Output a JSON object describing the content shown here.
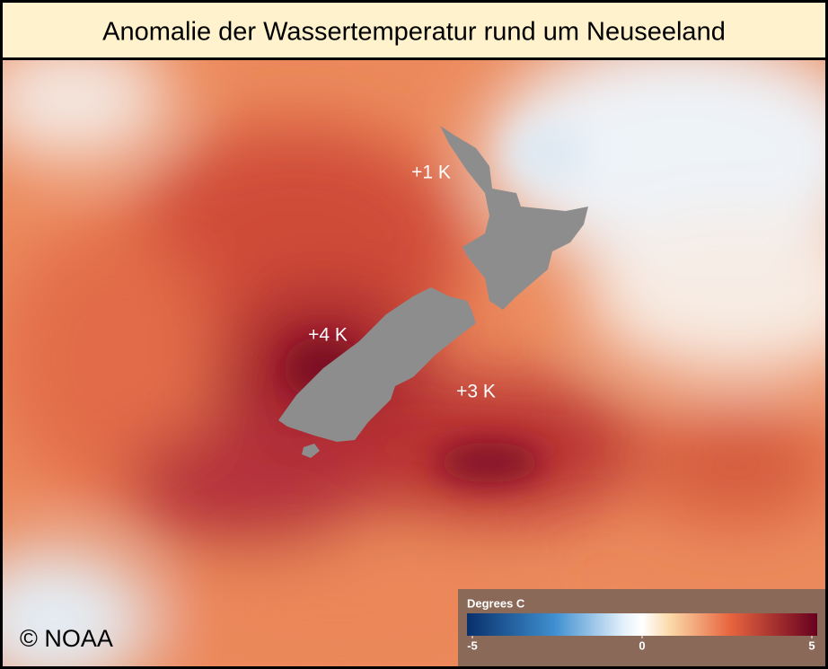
{
  "title": "Anomalie der Wassertemperatur rund um Neuseeland",
  "annotations": [
    {
      "text": "+1 K"
    },
    {
      "text": "+4 K"
    },
    {
      "text": "+3 K"
    }
  ],
  "credit": "© NOAA",
  "legend": {
    "title": "Degrees C",
    "range": [
      -5,
      5
    ],
    "ticks": [
      -5,
      0,
      5
    ]
  }
}
